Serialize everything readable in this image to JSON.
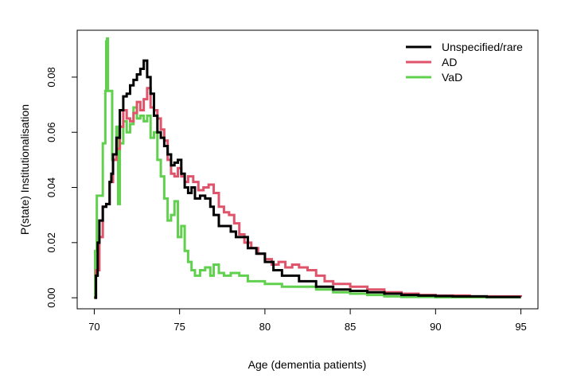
{
  "chart_data": {
    "type": "line",
    "title": "",
    "xlabel": "Age (dementia patients)",
    "ylabel": "P(state) Institutionalisation",
    "xlim": [
      69.0,
      96.0
    ],
    "ylim": [
      -0.004,
      0.097
    ],
    "x_ticks": [
      70,
      75,
      80,
      85,
      90,
      95
    ],
    "y_ticks": [
      0.0,
      0.02,
      0.04,
      0.06,
      0.08
    ],
    "y_tick_labels": [
      "0.00",
      "0.02",
      "0.04",
      "0.06",
      "0.08"
    ],
    "grid": false,
    "legend_position": "top-right",
    "series": [
      {
        "name": "Unspecified/rare",
        "color": "#000000",
        "points": [
          [
            70.0,
            0.0
          ],
          [
            70.1,
            0.008
          ],
          [
            70.2,
            0.02
          ],
          [
            70.3,
            0.028
          ],
          [
            70.5,
            0.033
          ],
          [
            70.7,
            0.034
          ],
          [
            70.9,
            0.042
          ],
          [
            71.0,
            0.045
          ],
          [
            71.1,
            0.052
          ],
          [
            71.3,
            0.058
          ],
          [
            71.5,
            0.068
          ],
          [
            71.7,
            0.073
          ],
          [
            71.9,
            0.074
          ],
          [
            72.1,
            0.077
          ],
          [
            72.3,
            0.079
          ],
          [
            72.5,
            0.081
          ],
          [
            72.7,
            0.083
          ],
          [
            72.9,
            0.086
          ],
          [
            73.1,
            0.08
          ],
          [
            73.3,
            0.074
          ],
          [
            73.5,
            0.066
          ],
          [
            73.7,
            0.06
          ],
          [
            73.9,
            0.058
          ],
          [
            74.1,
            0.055
          ],
          [
            74.3,
            0.052
          ],
          [
            74.5,
            0.048
          ],
          [
            74.7,
            0.049
          ],
          [
            74.9,
            0.05
          ],
          [
            75.1,
            0.045
          ],
          [
            75.3,
            0.04
          ],
          [
            75.5,
            0.038
          ],
          [
            75.7,
            0.04
          ],
          [
            75.9,
            0.036
          ],
          [
            76.2,
            0.037
          ],
          [
            76.5,
            0.036
          ],
          [
            76.8,
            0.033
          ],
          [
            77.0,
            0.03
          ],
          [
            77.3,
            0.026
          ],
          [
            77.6,
            0.026
          ],
          [
            78.0,
            0.024
          ],
          [
            78.3,
            0.022
          ],
          [
            78.6,
            0.022
          ],
          [
            79.0,
            0.018
          ],
          [
            79.5,
            0.016
          ],
          [
            80.0,
            0.013
          ],
          [
            80.5,
            0.01
          ],
          [
            81.0,
            0.008
          ],
          [
            82.0,
            0.006
          ],
          [
            83.0,
            0.004
          ],
          [
            84.0,
            0.003
          ],
          [
            85.0,
            0.0025
          ],
          [
            86.0,
            0.002
          ],
          [
            87.0,
            0.0015
          ],
          [
            88.0,
            0.001
          ],
          [
            89.0,
            0.0008
          ],
          [
            90.0,
            0.0006
          ],
          [
            91.0,
            0.0005
          ],
          [
            93.0,
            0.0003
          ],
          [
            95.0,
            0.0003
          ]
        ]
      },
      {
        "name": "AD",
        "color": "#DF536B",
        "points": [
          [
            70.0,
            0.0
          ],
          [
            70.1,
            0.01
          ],
          [
            70.3,
            0.022
          ],
          [
            70.5,
            0.033
          ],
          [
            70.7,
            0.034
          ],
          [
            70.9,
            0.042
          ],
          [
            71.1,
            0.05
          ],
          [
            71.3,
            0.054
          ],
          [
            71.5,
            0.062
          ],
          [
            71.7,
            0.068
          ],
          [
            71.9,
            0.065
          ],
          [
            72.1,
            0.064
          ],
          [
            72.3,
            0.067
          ],
          [
            72.5,
            0.071
          ],
          [
            72.7,
            0.068
          ],
          [
            72.9,
            0.072
          ],
          [
            73.1,
            0.076
          ],
          [
            73.3,
            0.069
          ],
          [
            73.5,
            0.068
          ],
          [
            73.7,
            0.065
          ],
          [
            73.9,
            0.061
          ],
          [
            74.1,
            0.057
          ],
          [
            74.3,
            0.05
          ],
          [
            74.5,
            0.045
          ],
          [
            74.7,
            0.044
          ],
          [
            74.9,
            0.047
          ],
          [
            75.1,
            0.044
          ],
          [
            75.3,
            0.042
          ],
          [
            75.5,
            0.044
          ],
          [
            75.8,
            0.042
          ],
          [
            76.1,
            0.039
          ],
          [
            76.4,
            0.04
          ],
          [
            76.7,
            0.041
          ],
          [
            77.0,
            0.038
          ],
          [
            77.3,
            0.033
          ],
          [
            77.6,
            0.031
          ],
          [
            77.9,
            0.03
          ],
          [
            78.2,
            0.027
          ],
          [
            78.5,
            0.023
          ],
          [
            78.8,
            0.02
          ],
          [
            79.2,
            0.018
          ],
          [
            79.6,
            0.016
          ],
          [
            80.0,
            0.014
          ],
          [
            80.4,
            0.012
          ],
          [
            80.8,
            0.013
          ],
          [
            81.2,
            0.011
          ],
          [
            81.6,
            0.012
          ],
          [
            82.0,
            0.011
          ],
          [
            82.5,
            0.01
          ],
          [
            83.0,
            0.008
          ],
          [
            83.5,
            0.006
          ],
          [
            84.0,
            0.005
          ],
          [
            85.0,
            0.004
          ],
          [
            86.0,
            0.003
          ],
          [
            87.0,
            0.002
          ],
          [
            88.0,
            0.0015
          ],
          [
            89.0,
            0.001
          ],
          [
            90.0,
            0.0008
          ],
          [
            92.0,
            0.0005
          ],
          [
            95.0,
            0.0003
          ]
        ]
      },
      {
        "name": "VaD",
        "color": "#61D04F",
        "points": [
          [
            70.0,
            0.0
          ],
          [
            70.05,
            0.017
          ],
          [
            70.15,
            0.037
          ],
          [
            70.3,
            0.037
          ],
          [
            70.45,
            0.037
          ],
          [
            70.5,
            0.056
          ],
          [
            70.65,
            0.075
          ],
          [
            70.7,
            0.093
          ],
          [
            70.75,
            0.094
          ],
          [
            70.8,
            0.075
          ],
          [
            71.0,
            0.075
          ],
          [
            71.05,
            0.05
          ],
          [
            71.2,
            0.05
          ],
          [
            71.3,
            0.062
          ],
          [
            71.4,
            0.034
          ],
          [
            71.5,
            0.056
          ],
          [
            71.7,
            0.064
          ],
          [
            71.9,
            0.06
          ],
          [
            72.1,
            0.063
          ],
          [
            72.3,
            0.069
          ],
          [
            72.5,
            0.065
          ],
          [
            72.7,
            0.066
          ],
          [
            72.9,
            0.064
          ],
          [
            73.1,
            0.066
          ],
          [
            73.3,
            0.058
          ],
          [
            73.5,
            0.06
          ],
          [
            73.7,
            0.05
          ],
          [
            73.9,
            0.044
          ],
          [
            74.1,
            0.036
          ],
          [
            74.3,
            0.028
          ],
          [
            74.5,
            0.03
          ],
          [
            74.7,
            0.035
          ],
          [
            74.9,
            0.022
          ],
          [
            75.1,
            0.026
          ],
          [
            75.3,
            0.017
          ],
          [
            75.5,
            0.013
          ],
          [
            75.7,
            0.01
          ],
          [
            75.9,
            0.008
          ],
          [
            76.2,
            0.01
          ],
          [
            76.5,
            0.011
          ],
          [
            76.8,
            0.008
          ],
          [
            77.0,
            0.012
          ],
          [
            77.3,
            0.009
          ],
          [
            77.6,
            0.008
          ],
          [
            78.0,
            0.009
          ],
          [
            78.5,
            0.008
          ],
          [
            79.0,
            0.006
          ],
          [
            79.5,
            0.006
          ],
          [
            80.0,
            0.005
          ],
          [
            80.5,
            0.005
          ],
          [
            81.0,
            0.004
          ],
          [
            82.0,
            0.004
          ],
          [
            83.0,
            0.003
          ],
          [
            84.0,
            0.002
          ],
          [
            85.0,
            0.0015
          ],
          [
            86.0,
            0.001
          ],
          [
            87.0,
            0.0005
          ],
          [
            88.0,
            0.0003
          ],
          [
            90.0,
            0.0002
          ],
          [
            95.0,
            0.0002
          ]
        ]
      }
    ]
  }
}
